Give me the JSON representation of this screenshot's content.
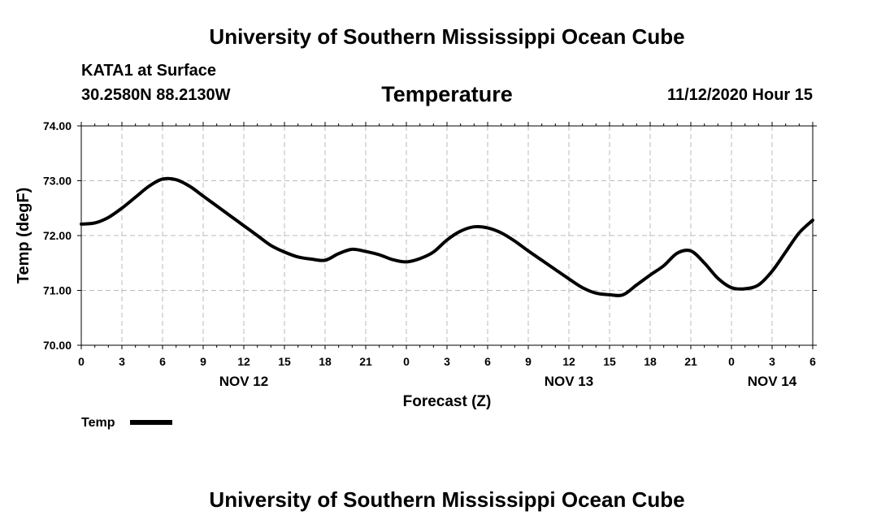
{
  "header": {
    "title": "University of Southern Mississippi Ocean Cube",
    "station": "KATA1 at Surface",
    "coordinates": "30.2580N 88.2130W",
    "run_time": "11/12/2020 Hour 15"
  },
  "footer": {
    "title": "University of Southern Mississippi Ocean Cube"
  },
  "chart_data": {
    "type": "line",
    "title": "Temperature",
    "xlabel": "Forecast (Z)",
    "ylabel": "Temp (degF)",
    "ylim": [
      70.0,
      74.0
    ],
    "y_ticks": [
      "70.00",
      "71.00",
      "72.00",
      "73.00",
      "74.00"
    ],
    "xlim": [
      0,
      54
    ],
    "x_tick_labels": [
      "0",
      "3",
      "6",
      "9",
      "12",
      "15",
      "18",
      "21",
      "0",
      "3",
      "6",
      "9",
      "12",
      "15",
      "18",
      "21",
      "0",
      "3",
      "6"
    ],
    "date_labels": [
      {
        "hour": 12,
        "label": "NOV 12"
      },
      {
        "hour": 36,
        "label": "NOV 13"
      },
      {
        "hour": 51,
        "label": "NOV 14"
      }
    ],
    "grid": true,
    "legend": [
      {
        "name": "Temp",
        "placement": "bottom-left"
      }
    ],
    "colors": {
      "line": "#000000",
      "grid": "#bbbbbb",
      "axis": "#000000"
    },
    "series": [
      {
        "name": "Temp",
        "x": [
          0,
          1,
          2,
          3,
          4,
          5,
          6,
          7,
          8,
          9,
          10,
          11,
          12,
          13,
          14,
          15,
          16,
          17,
          18,
          19,
          20,
          21,
          22,
          23,
          24,
          25,
          26,
          27,
          28,
          29,
          30,
          31,
          32,
          33,
          34,
          35,
          36,
          37,
          38,
          39,
          40,
          41,
          42,
          43,
          44,
          45,
          46,
          47,
          48,
          49,
          50,
          51,
          52,
          53,
          54
        ],
        "values": [
          72.21,
          72.23,
          72.33,
          72.5,
          72.7,
          72.9,
          73.03,
          73.02,
          72.9,
          72.72,
          72.54,
          72.36,
          72.18,
          72.0,
          71.82,
          71.7,
          71.61,
          71.57,
          71.55,
          71.67,
          71.75,
          71.71,
          71.65,
          71.56,
          71.52,
          71.58,
          71.7,
          71.92,
          72.08,
          72.16,
          72.14,
          72.05,
          71.9,
          71.72,
          71.55,
          71.38,
          71.21,
          71.05,
          70.95,
          70.92,
          70.92,
          71.1,
          71.28,
          71.45,
          71.68,
          71.72,
          71.5,
          71.22,
          71.05,
          71.03,
          71.1,
          71.35,
          71.7,
          72.05,
          72.28
        ]
      }
    ]
  }
}
